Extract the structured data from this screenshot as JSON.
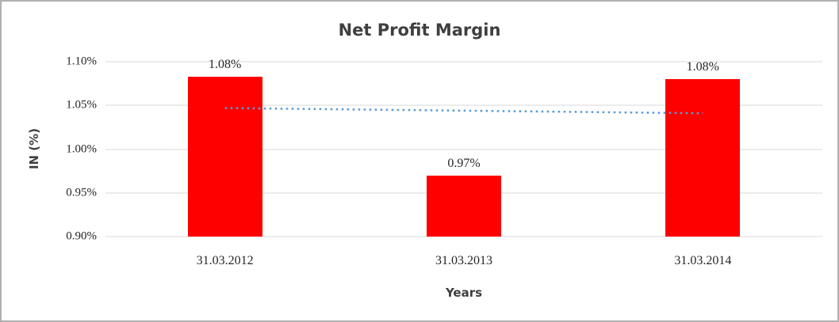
{
  "page": {
    "background": "#FFFFFF",
    "border_color": "#B0B0B0"
  },
  "chart_data": {
    "type": "bar",
    "title": "Net Profit Margin",
    "xlabel": "Years",
    "ylabel": "IN (%)",
    "categories": [
      "31.03.2012",
      "31.03.2013",
      "31.03.2014"
    ],
    "series": [
      {
        "name": "Net Profit Margin",
        "values": [
          1.083,
          0.97,
          1.08
        ],
        "data_labels": [
          "1.08%",
          "0.97%",
          "1.08%"
        ],
        "color": "#FF0000"
      }
    ],
    "y_ticks": [
      "1.10%",
      "1.05%",
      "1.00%",
      "0.95%",
      "0.90%"
    ],
    "y_tick_values": [
      1.1,
      1.05,
      1.0,
      0.95,
      0.9
    ],
    "ylim": [
      0.9,
      1.1
    ],
    "grid": true,
    "gridline_color": "#D9D9D9",
    "legend": "none",
    "trendline": {
      "type": "linear",
      "style": "dotted",
      "color": "#5B9BD5",
      "start_value": 1.047,
      "end_value": 1.041
    }
  }
}
